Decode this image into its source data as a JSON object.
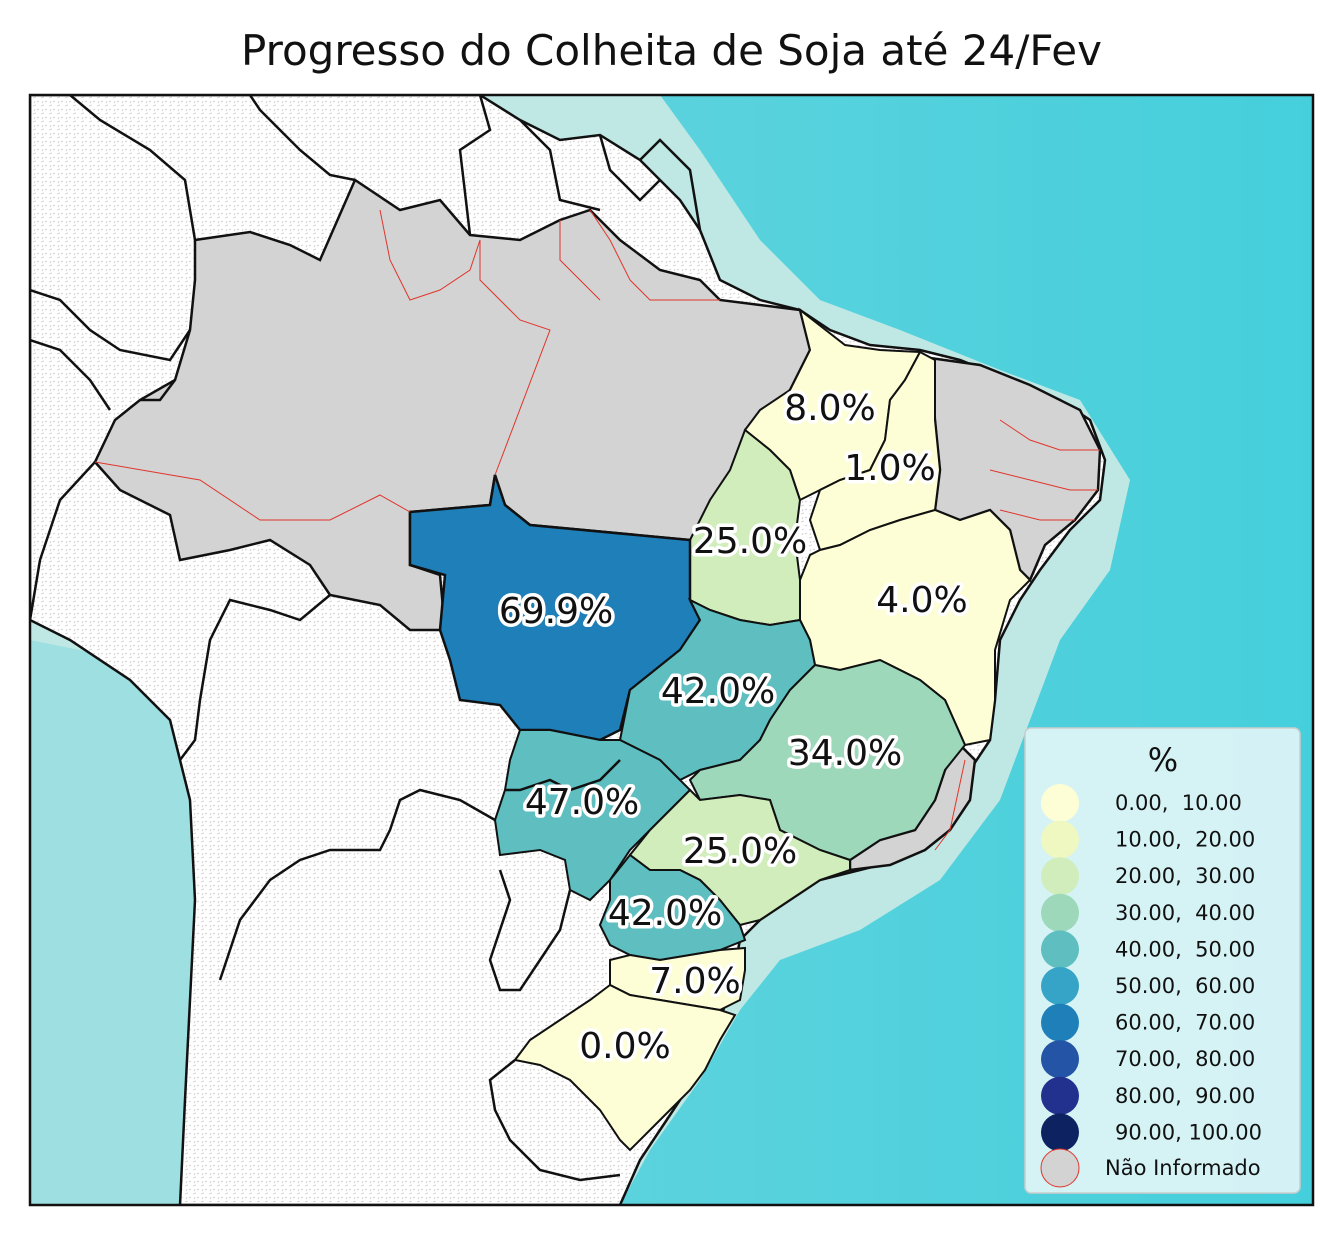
{
  "title": "Progresso do Colheita de Soja até 24/Fev",
  "colors": {
    "ocean_deep": "#4fd0dc",
    "ocean_shelf": "#c3e9e6",
    "land_foreign": "#ffffff",
    "not_informed": "#d3d3d3",
    "state_border": "#111111",
    "not_informed_border": "#e0352b"
  },
  "map_labels": [
    {
      "id": "MA",
      "text": "8.0%",
      "value": 8.0
    },
    {
      "id": "PI",
      "text": "1.0%",
      "value": 1.0
    },
    {
      "id": "TO",
      "text": "25.0%",
      "value": 25.0
    },
    {
      "id": "BA",
      "text": "4.0%",
      "value": 4.0
    },
    {
      "id": "MT",
      "text": "69.9%",
      "value": 69.9
    },
    {
      "id": "GO",
      "text": "42.0%",
      "value": 42.0
    },
    {
      "id": "MG",
      "text": "34.0%",
      "value": 34.0
    },
    {
      "id": "MS",
      "text": "47.0%",
      "value": 47.0
    },
    {
      "id": "SP",
      "text": "25.0%",
      "value": 25.0
    },
    {
      "id": "PR",
      "text": "42.0%",
      "value": 42.0
    },
    {
      "id": "SC",
      "text": "7.0%",
      "value": 7.0
    },
    {
      "id": "RS",
      "text": "0.0%",
      "value": 0.0
    }
  ],
  "legend": {
    "title": "%",
    "items": [
      {
        "label": "0.00,  10.00",
        "color": "#fdfdd6"
      },
      {
        "label": "10.00,  20.00",
        "color": "#eef8c0"
      },
      {
        "label": "20.00,  30.00",
        "color": "#d0edbb"
      },
      {
        "label": "30.00,  40.00",
        "color": "#9dd8bb"
      },
      {
        "label": "40.00,  50.00",
        "color": "#5ebec0"
      },
      {
        "label": "50.00,  60.00",
        "color": "#36a4c6"
      },
      {
        "label": "60.00,  70.00",
        "color": "#1f7fb8"
      },
      {
        "label": "70.00,  80.00",
        "color": "#2454a5"
      },
      {
        "label": "80.00,  90.00",
        "color": "#23318e"
      },
      {
        "label": "90.00, 100.00",
        "color": "#0d2260"
      }
    ],
    "not_informed_label": "Não Informado",
    "not_informed_color": "#d3d3d3"
  }
}
